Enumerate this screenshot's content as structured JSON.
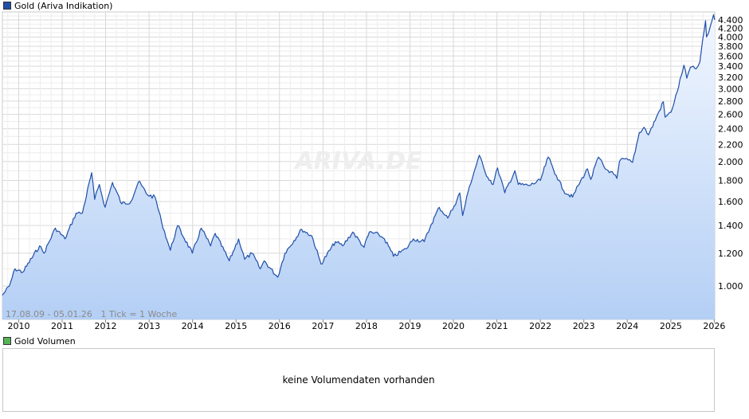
{
  "legend_main": "Gold (Ariva Indikation)",
  "legend_volume": "Gold Volumen",
  "volume_message": "keine Volumendaten vorhanden",
  "range_info": "17.08.09 - 05.01.26   1 Tick = 1 Woche",
  "watermark": "ARIVA.DE",
  "colors": {
    "line": "#1f4fa8",
    "fill_top": "#f2f7ff",
    "fill_bottom": "#b4cff5",
    "grid": "#d9d9d9",
    "volume_swatch": "#55b455",
    "main_swatch": "#1f4fa8"
  },
  "chart_data": {
    "type": "area",
    "title": "Gold (Ariva Indikation)",
    "y_scale": "log",
    "ylim": [
      830,
      4600
    ],
    "x_range": [
      "2009-08-17",
      "2026-01-05"
    ],
    "x_tick_labels": [
      "2010",
      "2011",
      "2012",
      "2013",
      "2014",
      "2015",
      "2016",
      "2017",
      "2018",
      "2019",
      "2020",
      "2021",
      "2022",
      "2023",
      "2024",
      "2025",
      "2026"
    ],
    "y_tick_labels": [
      "1.000",
      "1.200",
      "1.400",
      "1.600",
      "1.800",
      "2.000",
      "2.200",
      "2.400",
      "2.600",
      "2.800",
      "3.000",
      "3.200",
      "3.400",
      "3.600",
      "3.800",
      "4.000",
      "4.200",
      "4.400"
    ],
    "y_tick_values": [
      1000,
      1200,
      1400,
      1600,
      1800,
      2000,
      2200,
      2400,
      2600,
      2800,
      3000,
      3200,
      3400,
      3600,
      3800,
      4000,
      4200,
      4400
    ],
    "series": [
      {
        "x": [
          "2009-08-17",
          "2009-10-15",
          "2009-12-01",
          "2010-02-05",
          "2010-06-25",
          "2010-08-01",
          "2010-11-05",
          "2011-01-25",
          "2011-04-28",
          "2011-06-20",
          "2011-09-06",
          "2011-10-01",
          "2011-11-10",
          "2011-12-28",
          "2012-02-28",
          "2012-05-15",
          "2012-08-01",
          "2012-10-04",
          "2012-12-20",
          "2013-02-20",
          "2013-04-15",
          "2013-06-28",
          "2013-08-28",
          "2013-12-30",
          "2014-03-15",
          "2014-06-01",
          "2014-07-10",
          "2014-11-05",
          "2015-01-22",
          "2015-03-15",
          "2015-05-15",
          "2015-07-24",
          "2015-08-25",
          "2015-12-17",
          "2016-02-15",
          "2016-07-06",
          "2016-09-30",
          "2016-12-15",
          "2017-04-15",
          "2017-06-15",
          "2017-09-08",
          "2017-12-12",
          "2018-01-25",
          "2018-04-15",
          "2018-06-01",
          "2018-08-16",
          "2018-12-01",
          "2019-01-30",
          "2019-05-01",
          "2019-06-30",
          "2019-09-04",
          "2019-11-15",
          "2020-01-07",
          "2020-02-24",
          "2020-03-19",
          "2020-05-15",
          "2020-08-06",
          "2020-09-25",
          "2020-11-30",
          "2021-01-06",
          "2021-03-08",
          "2021-06-01",
          "2021-06-30",
          "2021-09-30",
          "2022-01-01",
          "2022-03-08",
          "2022-05-15",
          "2022-07-15",
          "2022-09-28",
          "2022-11-15",
          "2023-02-01",
          "2023-03-01",
          "2023-05-04",
          "2023-06-30",
          "2023-08-15",
          "2023-10-06",
          "2023-10-27",
          "2023-12-04",
          "2024-02-14",
          "2024-04-12",
          "2024-05-20",
          "2024-06-28",
          "2024-09-26",
          "2024-10-30",
          "2024-11-14",
          "2025-01-02",
          "2025-02-24",
          "2025-04-21",
          "2025-05-15",
          "2025-06-15",
          "2025-08-01",
          "2025-09-02",
          "2025-10-20",
          "2025-10-28",
          "2025-11-15",
          "2025-12-26",
          "2026-01-05"
        ],
        "values": [
          950,
          1000,
          1100,
          1080,
          1250,
          1200,
          1380,
          1300,
          1500,
          1500,
          1880,
          1620,
          1760,
          1550,
          1780,
          1580,
          1600,
          1790,
          1660,
          1640,
          1430,
          1220,
          1400,
          1200,
          1380,
          1250,
          1340,
          1150,
          1300,
          1160,
          1200,
          1100,
          1150,
          1050,
          1200,
          1370,
          1320,
          1130,
          1280,
          1250,
          1350,
          1240,
          1350,
          1330,
          1300,
          1180,
          1230,
          1300,
          1280,
          1410,
          1550,
          1460,
          1560,
          1680,
          1480,
          1740,
          2070,
          1880,
          1760,
          1930,
          1680,
          1900,
          1760,
          1750,
          1800,
          2050,
          1850,
          1700,
          1640,
          1750,
          1920,
          1810,
          2050,
          1920,
          1890,
          1820,
          2000,
          2030,
          1990,
          2350,
          2420,
          2320,
          2650,
          2790,
          2560,
          2630,
          2950,
          3420,
          3180,
          3380,
          3350,
          3480,
          4380,
          4000,
          4100,
          4530,
          4400
        ]
      }
    ]
  }
}
